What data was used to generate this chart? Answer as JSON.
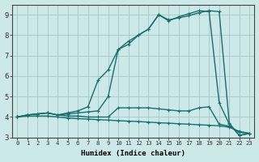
{
  "xlabel": "Humidex (Indice chaleur)",
  "ylabel": "",
  "background_color": "#cde8e8",
  "grid_color": "#aacccc",
  "xlim": [
    -0.5,
    23.5
  ],
  "ylim": [
    3.0,
    9.5
  ],
  "xtick_labels": [
    "0",
    "1",
    "2",
    "3",
    "4",
    "5",
    "6",
    "7",
    "8",
    "9",
    "10",
    "11",
    "12",
    "13",
    "14",
    "15",
    "16",
    "17",
    "18",
    "19",
    "20",
    "21",
    "22",
    "23"
  ],
  "ytick_labels": [
    "3",
    "4",
    "5",
    "6",
    "7",
    "8",
    "9"
  ],
  "series": [
    {
      "x": [
        0,
        1,
        2,
        3,
        4,
        5,
        6,
        7,
        8,
        9,
        10,
        11,
        12,
        13,
        14,
        15,
        16,
        17,
        18,
        19,
        20,
        21,
        22,
        23
      ],
      "y": [
        4.0,
        4.1,
        4.15,
        4.2,
        4.1,
        4.2,
        4.3,
        4.5,
        5.8,
        6.3,
        7.3,
        7.7,
        8.0,
        8.3,
        9.0,
        8.7,
        8.9,
        9.05,
        9.2,
        9.15,
        4.7,
        3.65,
        3.1,
        3.2
      ],
      "color": "#1a6e6e",
      "lw": 1.0,
      "marker": "+"
    },
    {
      "x": [
        0,
        1,
        2,
        3,
        4,
        5,
        6,
        7,
        8,
        9,
        10,
        11,
        12,
        13,
        14,
        15,
        16,
        17,
        18,
        19,
        20,
        21,
        22,
        23
      ],
      "y": [
        4.0,
        4.1,
        4.15,
        4.2,
        4.1,
        4.15,
        4.2,
        4.25,
        4.3,
        5.0,
        7.3,
        7.55,
        8.0,
        8.3,
        9.0,
        8.75,
        8.85,
        8.95,
        9.1,
        9.2,
        9.15,
        3.7,
        3.1,
        3.2
      ],
      "color": "#1a6e6e",
      "lw": 1.0,
      "marker": "+"
    },
    {
      "x": [
        0,
        1,
        2,
        3,
        4,
        5,
        6,
        7,
        8,
        9,
        10,
        11,
        12,
        13,
        14,
        15,
        16,
        17,
        18,
        19,
        20,
        21,
        22,
        23
      ],
      "y": [
        4.0,
        4.1,
        4.15,
        4.2,
        4.1,
        4.05,
        4.05,
        4.0,
        4.0,
        4.0,
        4.45,
        4.45,
        4.45,
        4.45,
        4.4,
        4.35,
        4.3,
        4.3,
        4.45,
        4.5,
        3.65,
        3.55,
        3.25,
        3.2
      ],
      "color": "#1a6e6e",
      "lw": 1.0,
      "marker": "+"
    },
    {
      "x": [
        0,
        1,
        2,
        3,
        4,
        5,
        6,
        7,
        8,
        9,
        10,
        11,
        12,
        13,
        14,
        15,
        16,
        17,
        18,
        19,
        20,
        21,
        22,
        23
      ],
      "y": [
        4.0,
        4.05,
        4.05,
        4.05,
        4.0,
        3.95,
        3.92,
        3.9,
        3.87,
        3.85,
        3.82,
        3.8,
        3.78,
        3.75,
        3.72,
        3.7,
        3.67,
        3.65,
        3.62,
        3.6,
        3.57,
        3.5,
        3.3,
        3.2
      ],
      "color": "#1a6e6e",
      "lw": 1.0,
      "marker": "+"
    }
  ]
}
